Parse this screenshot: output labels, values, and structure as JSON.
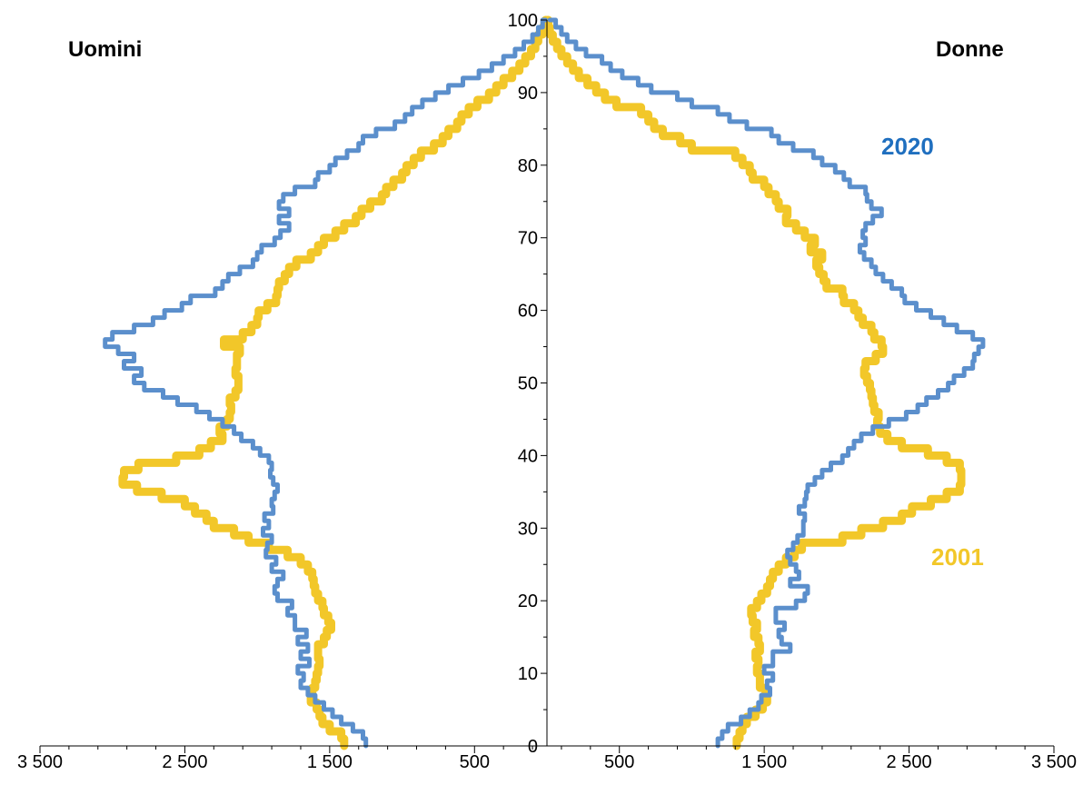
{
  "chart_data": {
    "type": "line",
    "side_labels": {
      "left": "Uomini",
      "right": "Donne"
    },
    "x_tick_labels": [
      "3 500",
      "2 500",
      "1 500",
      "500",
      "500",
      "1 500",
      "2 500",
      "3 500"
    ],
    "x_tick_values": [
      -3500,
      -2500,
      -1500,
      -500,
      500,
      1500,
      2500,
      3500
    ],
    "y_tick_labels": [
      "0",
      "10",
      "20",
      "30",
      "40",
      "50",
      "60",
      "70",
      "80",
      "90",
      "100"
    ],
    "y_tick_values": [
      0,
      10,
      20,
      30,
      40,
      50,
      60,
      70,
      80,
      90,
      100
    ],
    "xlim": [
      -3500,
      3500
    ],
    "ylim": [
      0,
      100
    ],
    "grid": false,
    "series": [
      {
        "name": "2020",
        "color": "#5B8FCC",
        "label_color": "#1F6FBF",
        "age": [
          0,
          1,
          2,
          3,
          4,
          5,
          6,
          7,
          8,
          9,
          10,
          11,
          12,
          13,
          14,
          15,
          16,
          17,
          18,
          19,
          20,
          21,
          22,
          23,
          24,
          25,
          26,
          27,
          28,
          29,
          30,
          31,
          32,
          33,
          34,
          35,
          36,
          37,
          38,
          39,
          40,
          41,
          42,
          43,
          44,
          45,
          46,
          47,
          48,
          49,
          50,
          51,
          52,
          53,
          54,
          55,
          56,
          57,
          58,
          59,
          60,
          61,
          62,
          63,
          64,
          65,
          66,
          67,
          68,
          69,
          70,
          71,
          72,
          73,
          74,
          75,
          76,
          77,
          78,
          79,
          80,
          81,
          82,
          83,
          84,
          85,
          86,
          87,
          88,
          89,
          90,
          91,
          92,
          93,
          94,
          95,
          96,
          97,
          98,
          99,
          100
        ],
        "men": [
          1250,
          1270,
          1340,
          1420,
          1480,
          1540,
          1600,
          1650,
          1700,
          1680,
          1720,
          1640,
          1700,
          1650,
          1720,
          1660,
          1740,
          1740,
          1790,
          1760,
          1860,
          1880,
          1860,
          1820,
          1900,
          1870,
          1940,
          1930,
          1900,
          1960,
          1920,
          1950,
          1890,
          1900,
          1880,
          1860,
          1890,
          1910,
          1900,
          1920,
          1980,
          2030,
          2110,
          2160,
          2240,
          2330,
          2420,
          2550,
          2650,
          2780,
          2850,
          2800,
          2920,
          2850,
          2960,
          3050,
          3000,
          2850,
          2720,
          2640,
          2520,
          2460,
          2290,
          2240,
          2200,
          2120,
          2030,
          2000,
          1970,
          1880,
          1840,
          1780,
          1850,
          1780,
          1850,
          1820,
          1740,
          1600,
          1580,
          1500,
          1460,
          1380,
          1300,
          1270,
          1180,
          1050,
          980,
          930,
          860,
          770,
          680,
          580,
          470,
          380,
          300,
          220,
          160,
          100,
          60,
          30,
          10
        ],
        "women": [
          1180,
          1210,
          1250,
          1340,
          1400,
          1460,
          1480,
          1540,
          1520,
          1560,
          1500,
          1560,
          1560,
          1680,
          1620,
          1600,
          1640,
          1580,
          1580,
          1720,
          1780,
          1800,
          1680,
          1740,
          1720,
          1680,
          1660,
          1700,
          1730,
          1770,
          1770,
          1780,
          1740,
          1780,
          1790,
          1800,
          1850,
          1900,
          1960,
          2040,
          2080,
          2120,
          2170,
          2250,
          2360,
          2480,
          2560,
          2620,
          2700,
          2770,
          2810,
          2880,
          2940,
          2950,
          2980,
          3010,
          2940,
          2830,
          2740,
          2650,
          2550,
          2470,
          2450,
          2380,
          2320,
          2270,
          2240,
          2190,
          2160,
          2200,
          2180,
          2200,
          2250,
          2310,
          2240,
          2210,
          2200,
          2090,
          2050,
          1990,
          1900,
          1840,
          1700,
          1600,
          1550,
          1380,
          1260,
          1180,
          1000,
          900,
          720,
          630,
          520,
          440,
          380,
          270,
          200,
          140,
          100,
          60,
          20
        ]
      },
      {
        "name": "2001",
        "color": "#F2C729",
        "label_color": "#F2C729",
        "age": [
          0,
          1,
          2,
          3,
          4,
          5,
          6,
          7,
          8,
          9,
          10,
          11,
          12,
          13,
          14,
          15,
          16,
          17,
          18,
          19,
          20,
          21,
          22,
          23,
          24,
          25,
          26,
          27,
          28,
          29,
          30,
          31,
          32,
          33,
          34,
          35,
          36,
          37,
          38,
          39,
          40,
          41,
          42,
          43,
          44,
          45,
          46,
          47,
          48,
          49,
          50,
          51,
          52,
          53,
          54,
          55,
          56,
          57,
          58,
          59,
          60,
          61,
          62,
          63,
          64,
          65,
          66,
          67,
          68,
          69,
          70,
          71,
          72,
          73,
          74,
          75,
          76,
          77,
          78,
          79,
          80,
          81,
          82,
          83,
          84,
          85,
          86,
          87,
          88,
          89,
          90,
          91,
          92,
          93,
          94,
          95,
          96,
          97,
          98,
          99,
          100
        ],
        "men": [
          1400,
          1420,
          1500,
          1550,
          1570,
          1590,
          1630,
          1620,
          1600,
          1590,
          1580,
          1570,
          1580,
          1580,
          1540,
          1520,
          1490,
          1510,
          1540,
          1550,
          1580,
          1600,
          1610,
          1620,
          1650,
          1700,
          1790,
          1920,
          2060,
          2160,
          2300,
          2350,
          2430,
          2500,
          2660,
          2830,
          2930,
          2920,
          2820,
          2560,
          2400,
          2320,
          2240,
          2260,
          2210,
          2190,
          2180,
          2190,
          2150,
          2130,
          2130,
          2150,
          2140,
          2140,
          2120,
          2230,
          2100,
          2040,
          2000,
          1990,
          1930,
          1870,
          1860,
          1850,
          1810,
          1780,
          1730,
          1630,
          1580,
          1540,
          1460,
          1400,
          1320,
          1280,
          1220,
          1140,
          1110,
          1060,
          1000,
          970,
          920,
          870,
          780,
          720,
          680,
          620,
          590,
          540,
          480,
          400,
          350,
          300,
          240,
          190,
          150,
          110,
          80,
          60,
          30,
          10,
          5
        ],
        "women": [
          1310,
          1330,
          1350,
          1380,
          1440,
          1490,
          1520,
          1510,
          1470,
          1470,
          1450,
          1460,
          1440,
          1470,
          1460,
          1430,
          1450,
          1420,
          1410,
          1450,
          1480,
          1520,
          1540,
          1560,
          1600,
          1650,
          1710,
          1760,
          2040,
          2170,
          2320,
          2450,
          2520,
          2650,
          2760,
          2850,
          2860,
          2860,
          2850,
          2760,
          2630,
          2450,
          2350,
          2300,
          2280,
          2290,
          2260,
          2250,
          2240,
          2230,
          2210,
          2190,
          2200,
          2270,
          2320,
          2310,
          2260,
          2240,
          2180,
          2150,
          2120,
          2050,
          2040,
          1930,
          1910,
          1880,
          1860,
          1900,
          1820,
          1850,
          1780,
          1720,
          1650,
          1660,
          1600,
          1580,
          1530,
          1500,
          1420,
          1400,
          1350,
          1300,
          1000,
          920,
          800,
          740,
          700,
          650,
          480,
          400,
          340,
          280,
          220,
          180,
          140,
          100,
          70,
          40,
          20,
          10,
          5
        ]
      }
    ]
  }
}
